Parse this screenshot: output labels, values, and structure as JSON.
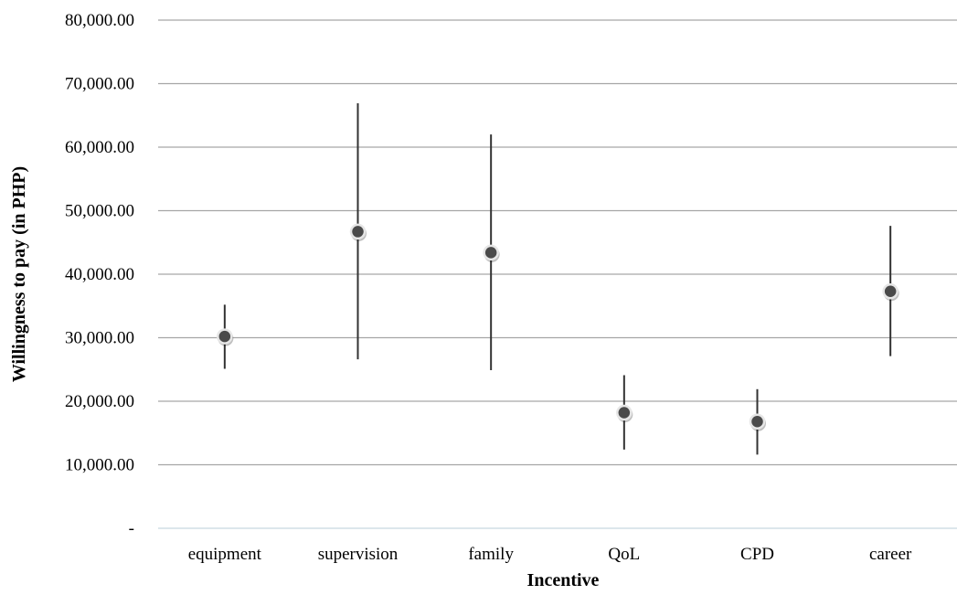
{
  "chart_data": {
    "type": "scatter",
    "title": "",
    "xlabel": "Incentive",
    "ylabel": "Willingness to pay (in PHP)",
    "ylim": [
      0,
      80000
    ],
    "y_ticks": [
      0,
      10000,
      20000,
      30000,
      40000,
      50000,
      60000,
      70000,
      80000
    ],
    "y_tick_labels": [
      "-",
      "10,000.00",
      "20,000.00",
      "30,000.00",
      "40,000.00",
      "50,000.00",
      "60,000.00",
      "70,000.00",
      "80,000.00"
    ],
    "grid": "horizontal",
    "legend": "none",
    "categories": [
      "equipment",
      "supervision",
      "family",
      "QoL",
      "CPD",
      "career"
    ],
    "values": [
      30200,
      46700,
      43400,
      18200,
      16800,
      37300
    ],
    "error_low": [
      25100,
      26600,
      24900,
      12400,
      11600,
      27100
    ],
    "error_high": [
      35200,
      66900,
      62000,
      24100,
      21900,
      47600
    ],
    "colors": {
      "marker": "#4a4a4a",
      "marker_outline": "#e6e6e6",
      "error_bar": "#333333",
      "grid": "#a6a6a6",
      "baseline": "#d0dde6"
    }
  }
}
